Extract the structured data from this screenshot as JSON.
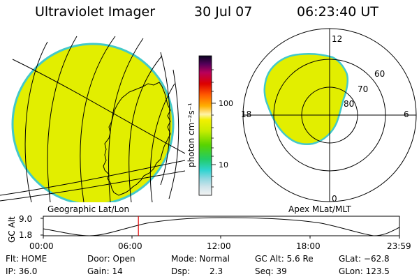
{
  "header": {
    "instrument": "Ultraviolet Imager",
    "date": "30 Jul 07",
    "time": "06:23:40 UT"
  },
  "colorbar": {
    "label": "photon cm⁻²s⁻¹",
    "tick_100": "100",
    "tick_10": "10"
  },
  "left_panel": {
    "caption": "Geographic Lat/Lon"
  },
  "right_panel": {
    "caption": "Apex MLat/MLT",
    "mlt_top": "12",
    "mlt_bottom": "0",
    "mlt_left": "18",
    "mlt_right": "6",
    "lat_60": "60",
    "lat_70": "70",
    "lat_80": "80"
  },
  "timeline": {
    "ylabel": "GC Alt",
    "ymax": "9.0",
    "ymin": "1.8",
    "ticks": [
      "00:00",
      "06:00",
      "12:00",
      "18:00",
      "23:59"
    ],
    "current_time_fraction": 0.267
  },
  "info": {
    "flt": "Flt: HOME",
    "door": "Door: Open",
    "mode": "Mode: Normal",
    "gc_alt": "GC Alt: 5.6 Re",
    "glat": "GLat: −62.8",
    "ip": "IP: 36.0",
    "gain": "Gain: 14",
    "dsp_label": "Dsp:",
    "dsp_value": "2.3",
    "seq": "Seq: 39",
    "glon": "GLon: 123.5"
  },
  "colors": {
    "aurora": "#e2ee00",
    "limb": "#43c9c9",
    "marker": "#e00000"
  }
}
